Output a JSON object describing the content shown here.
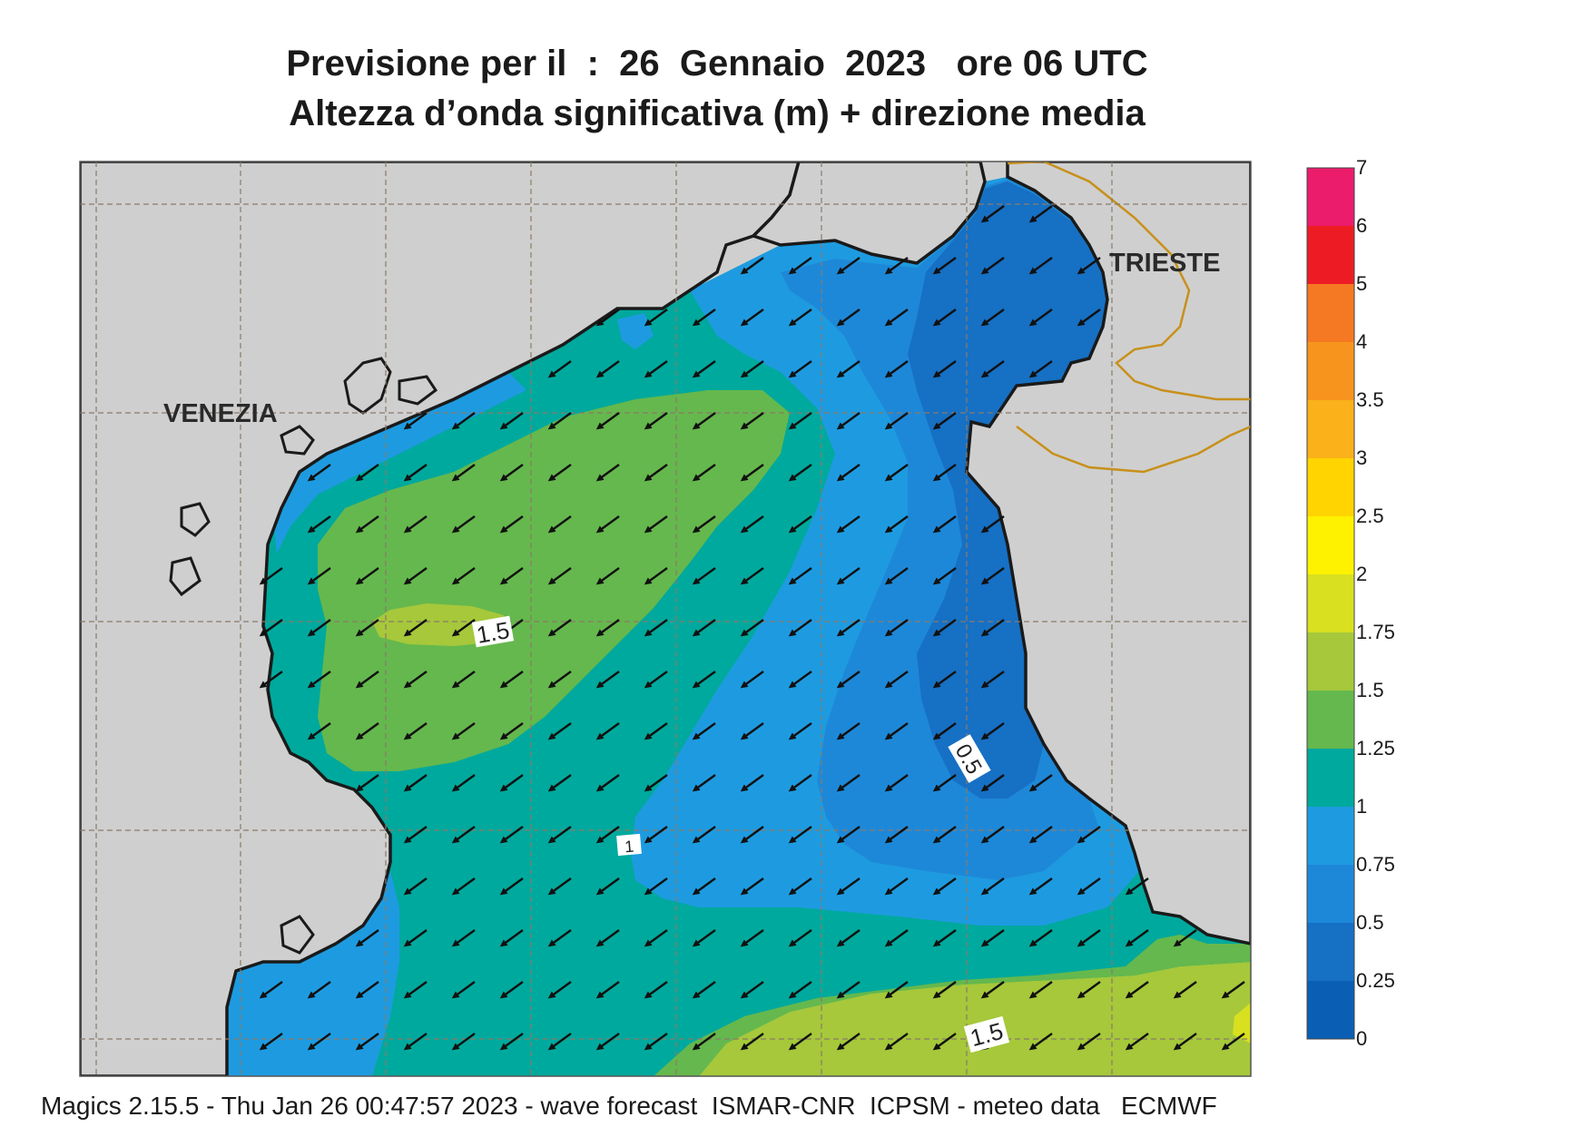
{
  "title": {
    "line1": "Previsione per il  :  26  Gennaio  2023   ore 06 UTC",
    "line2": "Altezza d’onda significativa (m) + direzione media"
  },
  "places": {
    "venezia": "VENEZIA",
    "trieste": "TRIESTE"
  },
  "contour_labels": {
    "left": "1.5",
    "south": "1.5",
    "east": "0.5",
    "small": "1"
  },
  "legend": {
    "levels": [
      "0",
      "0.25",
      "0.5",
      "0.75",
      "1",
      "1.25",
      "1.5",
      "1.75",
      "2",
      "2.5",
      "3",
      "3.5",
      "4",
      "5",
      "6",
      "7"
    ],
    "colors": [
      "#0a5fb4",
      "#1670c4",
      "#1e88d8",
      "#1e9be0",
      "#00a99d",
      "#65b84d",
      "#a6c83a",
      "#d8e020",
      "#fff200",
      "#ffd400",
      "#fbb11a",
      "#f7941d",
      "#f57922",
      "#ed1c24",
      "#ec1c6c"
    ]
  },
  "colors": {
    "land": "#cfcfcf",
    "coast": "#1a1a1a",
    "border": "#c8901a",
    "grid": "#8a7a6a"
  },
  "arrow_direction": "south-west",
  "footer": "Magics 2.15.5 - Thu Jan 26 00:47:57 2023 - wave forecast  ISMAR-CNR  ICPSM - meteo data   ECMWF"
}
